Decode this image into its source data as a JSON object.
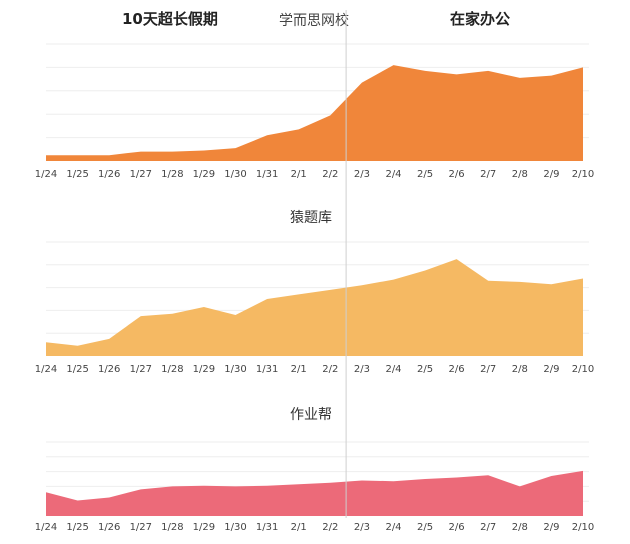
{
  "header": {
    "left_label": "10天超长假期",
    "center_label": "学而思网校",
    "right_label": "在家办公"
  },
  "colors": {
    "series_1": "#f0863a",
    "series_2": "#f5b963",
    "series_3": "#ec6a79",
    "divider": "#cfcfcf",
    "grid": "#eeeeee",
    "tick_text": "#444444"
  },
  "chart_data": [
    {
      "type": "area",
      "title": "",
      "categories": [
        "1/24",
        "1/25",
        "1/26",
        "1/27",
        "1/28",
        "1/29",
        "1/30",
        "1/31",
        "2/1",
        "2/2",
        "2/3",
        "2/4",
        "2/5",
        "2/6",
        "2/7",
        "2/8",
        "2/9",
        "2/10"
      ],
      "series": [
        {
          "values": [
            5,
            5,
            5,
            8,
            8,
            9,
            11,
            22,
            27,
            39,
            67,
            82,
            77,
            74,
            77,
            71,
            73,
            80
          ]
        }
      ],
      "ylim": [
        0,
        100
      ],
      "grid": true
    },
    {
      "type": "area",
      "title": "猿题库",
      "categories": [
        "1/24",
        "1/25",
        "1/26",
        "1/27",
        "1/28",
        "1/29",
        "1/30",
        "1/31",
        "2/1",
        "2/2",
        "2/3",
        "2/4",
        "2/5",
        "2/6",
        "2/7",
        "2/8",
        "2/9",
        "2/10"
      ],
      "series": [
        {
          "values": [
            12,
            9,
            15,
            35,
            37,
            43,
            36,
            50,
            54,
            58,
            62,
            67,
            75,
            85,
            66,
            65,
            63,
            68
          ]
        }
      ],
      "ylim": [
        0,
        100
      ],
      "grid": true
    },
    {
      "type": "area",
      "title": "作业帮",
      "categories": [
        "1/24",
        "1/25",
        "1/26",
        "1/27",
        "1/28",
        "1/29",
        "1/30",
        "1/31",
        "2/1",
        "2/2",
        "2/3",
        "2/4",
        "2/5",
        "2/6",
        "2/7",
        "2/8",
        "2/9",
        "2/10"
      ],
      "series": [
        {
          "values": [
            32,
            21,
            25,
            36,
            40,
            41,
            40,
            41,
            43,
            45,
            48,
            47,
            50,
            52,
            55,
            40,
            54,
            61
          ]
        }
      ],
      "ylim": [
        0,
        100
      ],
      "grid": true
    }
  ]
}
